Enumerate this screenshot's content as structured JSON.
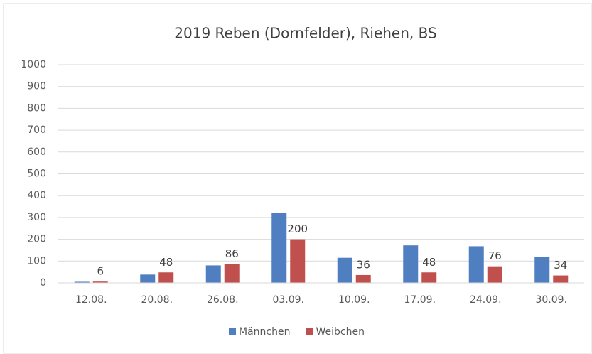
{
  "chart_data": {
    "type": "bar",
    "title": "2019 Reben (Dornfelder), Riehen, BS",
    "categories": [
      "12.08.",
      "20.08.",
      "26.08.",
      "03.09.",
      "10.09.",
      "17.09.",
      "24.09.",
      "30.09."
    ],
    "series": [
      {
        "name": "Männchen",
        "color": "#4f7fc1",
        "values": [
          5,
          38,
          80,
          320,
          115,
          172,
          168,
          120
        ]
      },
      {
        "name": "Weibchen",
        "color": "#c0504d",
        "values": [
          6,
          48,
          86,
          200,
          36,
          48,
          76,
          34
        ],
        "data_labels": true
      }
    ],
    "ylim": [
      0,
      1000
    ],
    "yticks": [
      0,
      100,
      200,
      300,
      400,
      500,
      600,
      700,
      800,
      900,
      1000
    ],
    "grid": true,
    "legend": "bottom"
  }
}
